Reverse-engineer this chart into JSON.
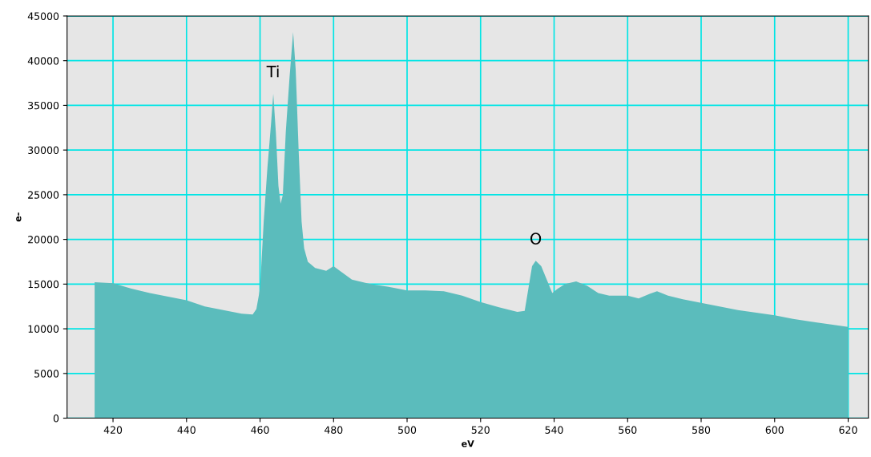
{
  "chart_data": {
    "type": "area",
    "xlabel": "eV",
    "ylabel": "e-",
    "xlim": [
      407.5,
      625.5
    ],
    "xticks": [
      420,
      440,
      460,
      480,
      500,
      520,
      540,
      560,
      580,
      600,
      620
    ],
    "ylim": [
      0,
      45000
    ],
    "yticks": [
      0,
      5000,
      10000,
      15000,
      20000,
      25000,
      30000,
      35000,
      40000,
      45000
    ],
    "grid": true,
    "legend": false,
    "annotations": [
      {
        "text": "Ti",
        "x": 463.6,
        "y": 36300
      },
      {
        "text": "O",
        "x": 535,
        "y": 17600
      }
    ],
    "series": [
      {
        "color": "#5bbcbc",
        "x": [
          415,
          420,
          425,
          430,
          435,
          440,
          445,
          450,
          455,
          458,
          459,
          460,
          461,
          462,
          463,
          463.6,
          464.3,
          465,
          465.6,
          466.2,
          467,
          468,
          469,
          469.7,
          470.5,
          471.3,
          472,
          473,
          475,
          478,
          480,
          482,
          485,
          490,
          495,
          500,
          505,
          510,
          515,
          520,
          525,
          530,
          532,
          533,
          534,
          535,
          536.5,
          538,
          539.5,
          541,
          543,
          546,
          549,
          552,
          555,
          560,
          563,
          566,
          568,
          571,
          575,
          580,
          585,
          590,
          595,
          600,
          605,
          610,
          615,
          620
        ],
        "values": [
          15200,
          15100,
          14500,
          14000,
          13600,
          13200,
          12500,
          12100,
          11700,
          11600,
          12200,
          14500,
          22000,
          28000,
          33000,
          36300,
          32000,
          26000,
          24000,
          25000,
          32000,
          38000,
          43200,
          39000,
          30000,
          22000,
          19000,
          17500,
          16800,
          16500,
          17000,
          16400,
          15500,
          15000,
          14700,
          14300,
          14300,
          14200,
          13700,
          13000,
          12400,
          11900,
          12000,
          14500,
          17000,
          17600,
          17000,
          15500,
          14000,
          14500,
          15000,
          15300,
          14800,
          14000,
          13700,
          13700,
          13400,
          13900,
          14200,
          13700,
          13300,
          12900,
          12500,
          12100,
          11800,
          11500,
          11100,
          10800,
          10500,
          10200
        ]
      }
    ]
  }
}
